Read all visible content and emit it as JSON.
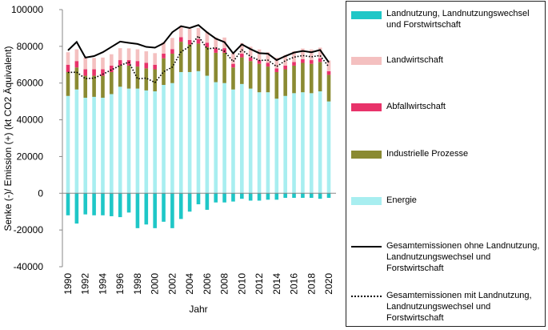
{
  "chart_data": {
    "type": "bar",
    "stacked": true,
    "x": [
      1990,
      1991,
      1992,
      1993,
      1994,
      1995,
      1996,
      1997,
      1998,
      1999,
      2000,
      2001,
      2002,
      2003,
      2004,
      2005,
      2006,
      2007,
      2008,
      2009,
      2010,
      2011,
      2012,
      2013,
      2014,
      2015,
      2016,
      2017,
      2018,
      2019,
      2020
    ],
    "xticks": [
      "1990",
      "1992",
      "1994",
      "1996",
      "1998",
      "2000",
      "2002",
      "2004",
      "2006",
      "2008",
      "2010",
      "2012",
      "2014",
      "2016",
      "2018",
      "2020"
    ],
    "yticks": [
      "-40000",
      "-20000",
      "0",
      "20000",
      "40000",
      "60000",
      "80000",
      "100000"
    ],
    "ylim": [
      -40000,
      100000
    ],
    "xlabel": "Jahr",
    "ylabel": "Senke (-)/ Emission (+)  (kt CO2 Äquivalent)",
    "series": [
      {
        "name": "Landnutzung, Landnutzungswechsel und Forstwirtschaft",
        "color": "#1fc7c7",
        "values": [
          -12000,
          -16500,
          -11500,
          -12000,
          -12000,
          -12500,
          -13000,
          -10500,
          -19000,
          -17000,
          -19000,
          -15500,
          -19000,
          -14000,
          -10000,
          -6000,
          -9000,
          -5000,
          -5000,
          -4500,
          -3000,
          -4000,
          -4000,
          -3500,
          -3500,
          -2500,
          -2500,
          -2500,
          -2500,
          -3000,
          -2500
        ]
      },
      {
        "name": "Energie",
        "color": "#a8eef0",
        "values": [
          53000,
          56500,
          52000,
          52500,
          52000,
          54000,
          58000,
          57000,
          57000,
          56000,
          55500,
          59000,
          60000,
          66000,
          66000,
          66500,
          64000,
          60500,
          60000,
          56500,
          59500,
          57000,
          55000,
          55000,
          51500,
          53000,
          54500,
          55000,
          54500,
          55500,
          50000
        ]
      },
      {
        "name": "Industrielle Prozesse",
        "color": "#8a8a32",
        "values": [
          13000,
          12000,
          12000,
          11500,
          12000,
          12000,
          11500,
          12500,
          12000,
          12000,
          12000,
          14500,
          16000,
          16500,
          15000,
          15000,
          15500,
          16000,
          16500,
          12000,
          14500,
          15000,
          15500,
          14000,
          14500,
          14500,
          15000,
          16000,
          16000,
          16000,
          14500
        ]
      },
      {
        "name": "Abfallwirtschaft",
        "color": "#e8336a",
        "values": [
          4000,
          3500,
          3500,
          3500,
          3500,
          3500,
          3000,
          3000,
          3000,
          3000,
          2500,
          2500,
          2500,
          2500,
          2500,
          2500,
          2500,
          2500,
          2500,
          2000,
          2000,
          2000,
          2000,
          2000,
          2000,
          2000,
          2000,
          2000,
          2000,
          2000,
          2000
        ]
      },
      {
        "name": "Landwirtschaft",
        "color": "#f4c0c0",
        "values": [
          6800,
          6400,
          6400,
          6200,
          6400,
          6200,
          6500,
          6400,
          6400,
          6300,
          6300,
          6300,
          6100,
          6100,
          6000,
          6000,
          6000,
          5800,
          5800,
          5800,
          5800,
          5800,
          5800,
          5800,
          5800,
          5800,
          5800,
          5800,
          5800,
          5800,
          5800
        ]
      },
      {
        "name": "Gesamtemissionen ohne Landnutzung, Landnutzungswechsel und Forstwirtschaft",
        "kind": "line",
        "style": "solid",
        "values": [
          77800,
          82400,
          73900,
          74700,
          76800,
          79700,
          82600,
          81900,
          81300,
          79700,
          79300,
          81700,
          87700,
          91000,
          90000,
          91600,
          87600,
          84200,
          82300,
          76200,
          81100,
          78500,
          76300,
          76000,
          72500,
          74700,
          76600,
          77500,
          76800,
          78000,
          71300
        ]
      },
      {
        "name": "Gesamtemissionen mit Landnutzung, Landnutzungswechsel und Forstwirtschaft",
        "kind": "line",
        "style": "dotted",
        "values": [
          65800,
          65900,
          62400,
          62700,
          64800,
          67200,
          69600,
          71400,
          62300,
          62700,
          60300,
          66200,
          68700,
          77000,
          80000,
          85600,
          78600,
          79200,
          77300,
          71700,
          78100,
          74500,
          72300,
          72500,
          69000,
          72200,
          74100,
          75000,
          74300,
          75000,
          68800
        ]
      }
    ]
  },
  "legend": {
    "items": [
      {
        "label": "Landnutzung, Landnutzungswechsel und Forstwirtschaft",
        "color": "#1fc7c7",
        "kind": "bar"
      },
      {
        "label": "Landwirtschaft",
        "color": "#f4c0c0",
        "kind": "bar"
      },
      {
        "label": "Abfallwirtschaft",
        "color": "#e8336a",
        "kind": "bar"
      },
      {
        "label": "Industrielle Prozesse",
        "color": "#8a8a32",
        "kind": "bar"
      },
      {
        "label": "Energie",
        "color": "#a8eef0",
        "kind": "bar"
      },
      {
        "label": "Gesamtemissionen ohne Landnutzung, Landnutzungswechsel und Forstwirtschaft",
        "kind": "solid"
      },
      {
        "label": "Gesamtemissionen mit Landnutzung, Landnutzungswechsel und Forstwirtschaft",
        "kind": "dotted"
      }
    ]
  }
}
